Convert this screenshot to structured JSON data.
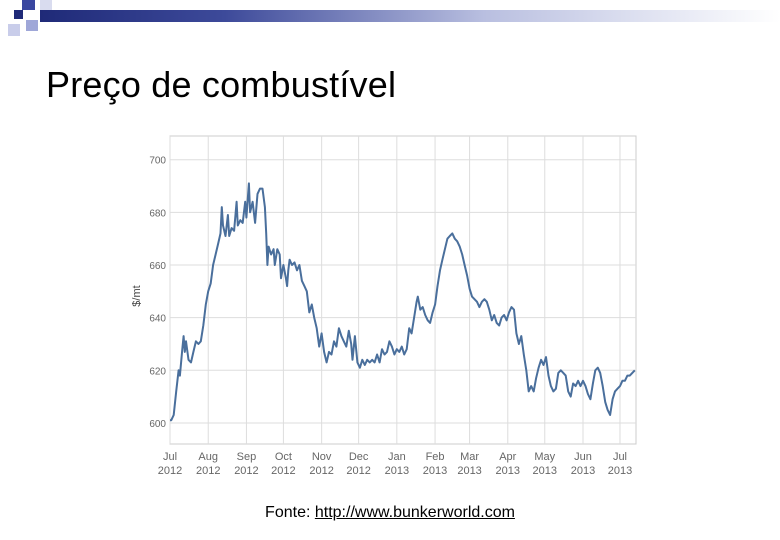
{
  "slide": {
    "title": "Preço de combustível",
    "source_label": "Fonte:",
    "source_link": "http://www.bunkerworld.com"
  },
  "colors": {
    "line": "#4a6f9c",
    "grid": "#dddddd",
    "axis_text": "#666666",
    "accent_dark": "#1f2a78"
  },
  "chart_data": {
    "type": "line",
    "title": "",
    "xlabel": "",
    "ylabel": "$/mt",
    "ylim": [
      592,
      709
    ],
    "yticks": [
      600,
      620,
      640,
      660,
      680,
      700
    ],
    "grid": true,
    "legend": "none",
    "x_ticks": [
      {
        "date": "2012-07-01",
        "month": "Jul",
        "year": "2012"
      },
      {
        "date": "2012-08-01",
        "month": "Aug",
        "year": "2012"
      },
      {
        "date": "2012-09-01",
        "month": "Sep",
        "year": "2012"
      },
      {
        "date": "2012-10-01",
        "month": "Oct",
        "year": "2012"
      },
      {
        "date": "2012-11-01",
        "month": "Nov",
        "year": "2012"
      },
      {
        "date": "2012-12-01",
        "month": "Dec",
        "year": "2012"
      },
      {
        "date": "2013-01-01",
        "month": "Jan",
        "year": "2013"
      },
      {
        "date": "2013-02-01",
        "month": "Feb",
        "year": "2013"
      },
      {
        "date": "2013-03-01",
        "month": "Mar",
        "year": "2013"
      },
      {
        "date": "2013-04-01",
        "month": "Apr",
        "year": "2013"
      },
      {
        "date": "2013-05-01",
        "month": "May",
        "year": "2013"
      },
      {
        "date": "2013-06-01",
        "month": "Jun",
        "year": "2013"
      },
      {
        "date": "2013-07-01",
        "month": "Jul",
        "year": "2013"
      }
    ],
    "xlim": [
      "2012-07-01",
      "2013-07-14"
    ],
    "series": [
      {
        "points": [
          [
            "2012-07-01",
            601
          ],
          [
            "2012-07-02",
            601
          ],
          [
            "2012-07-04",
            603
          ],
          [
            "2012-07-06",
            612
          ],
          [
            "2012-07-08",
            620
          ],
          [
            "2012-07-09",
            618
          ],
          [
            "2012-07-11",
            628
          ],
          [
            "2012-07-12",
            633
          ],
          [
            "2012-07-13",
            627
          ],
          [
            "2012-07-14",
            631
          ],
          [
            "2012-07-16",
            624
          ],
          [
            "2012-07-18",
            623
          ],
          [
            "2012-07-20",
            627
          ],
          [
            "2012-07-22",
            631
          ],
          [
            "2012-07-24",
            630
          ],
          [
            "2012-07-26",
            631
          ],
          [
            "2012-07-28",
            637
          ],
          [
            "2012-07-30",
            645
          ],
          [
            "2012-08-01",
            650
          ],
          [
            "2012-08-03",
            653
          ],
          [
            "2012-08-05",
            660
          ],
          [
            "2012-08-07",
            664
          ],
          [
            "2012-08-09",
            668
          ],
          [
            "2012-08-11",
            672
          ],
          [
            "2012-08-12",
            682
          ],
          [
            "2012-08-13",
            675
          ],
          [
            "2012-08-15",
            671
          ],
          [
            "2012-08-17",
            679
          ],
          [
            "2012-08-18",
            671
          ],
          [
            "2012-08-20",
            674
          ],
          [
            "2012-08-22",
            673
          ],
          [
            "2012-08-24",
            684
          ],
          [
            "2012-08-25",
            675
          ],
          [
            "2012-08-27",
            677
          ],
          [
            "2012-08-29",
            676
          ],
          [
            "2012-08-31",
            684
          ],
          [
            "2012-09-01",
            678
          ],
          [
            "2012-09-03",
            691
          ],
          [
            "2012-09-04",
            680
          ],
          [
            "2012-09-06",
            684
          ],
          [
            "2012-09-08",
            676
          ],
          [
            "2012-09-10",
            687
          ],
          [
            "2012-09-12",
            689
          ],
          [
            "2012-09-14",
            689
          ],
          [
            "2012-09-16",
            682
          ],
          [
            "2012-09-17",
            672
          ],
          [
            "2012-09-18",
            660
          ],
          [
            "2012-09-19",
            667
          ],
          [
            "2012-09-21",
            664
          ],
          [
            "2012-09-23",
            666
          ],
          [
            "2012-09-24",
            660
          ],
          [
            "2012-09-26",
            666
          ],
          [
            "2012-09-28",
            664
          ],
          [
            "2012-09-29",
            655
          ],
          [
            "2012-10-01",
            660
          ],
          [
            "2012-10-03",
            655
          ],
          [
            "2012-10-04",
            652
          ],
          [
            "2012-10-05",
            658
          ],
          [
            "2012-10-06",
            662
          ],
          [
            "2012-10-08",
            660
          ],
          [
            "2012-10-10",
            661
          ],
          [
            "2012-10-12",
            658
          ],
          [
            "2012-10-14",
            660
          ],
          [
            "2012-10-16",
            654
          ],
          [
            "2012-10-18",
            652
          ],
          [
            "2012-10-20",
            650
          ],
          [
            "2012-10-22",
            642
          ],
          [
            "2012-10-24",
            645
          ],
          [
            "2012-10-26",
            640
          ],
          [
            "2012-10-28",
            636
          ],
          [
            "2012-10-30",
            629
          ],
          [
            "2012-11-01",
            634
          ],
          [
            "2012-11-03",
            627
          ],
          [
            "2012-11-05",
            623
          ],
          [
            "2012-11-07",
            627
          ],
          [
            "2012-11-09",
            626
          ],
          [
            "2012-11-11",
            631
          ],
          [
            "2012-11-13",
            629
          ],
          [
            "2012-11-15",
            636
          ],
          [
            "2012-11-17",
            633
          ],
          [
            "2012-11-19",
            631
          ],
          [
            "2012-11-21",
            629
          ],
          [
            "2012-11-23",
            635
          ],
          [
            "2012-11-25",
            630
          ],
          [
            "2012-11-26",
            624
          ],
          [
            "2012-11-28",
            633
          ],
          [
            "2012-11-30",
            623
          ],
          [
            "2012-12-02",
            621
          ],
          [
            "2012-12-04",
            624
          ],
          [
            "2012-12-06",
            622
          ],
          [
            "2012-12-08",
            624
          ],
          [
            "2012-12-10",
            623
          ],
          [
            "2012-12-12",
            624
          ],
          [
            "2012-12-14",
            623
          ],
          [
            "2012-12-16",
            626
          ],
          [
            "2012-12-18",
            623
          ],
          [
            "2012-12-20",
            628
          ],
          [
            "2012-12-22",
            626
          ],
          [
            "2012-12-24",
            627
          ],
          [
            "2012-12-26",
            631
          ],
          [
            "2012-12-28",
            629
          ],
          [
            "2012-12-30",
            626
          ],
          [
            "2013-01-01",
            628
          ],
          [
            "2013-01-03",
            627
          ],
          [
            "2013-01-05",
            629
          ],
          [
            "2013-01-07",
            626
          ],
          [
            "2013-01-09",
            628
          ],
          [
            "2013-01-11",
            636
          ],
          [
            "2013-01-13",
            634
          ],
          [
            "2013-01-15",
            640
          ],
          [
            "2013-01-17",
            646
          ],
          [
            "2013-01-18",
            648
          ],
          [
            "2013-01-20",
            643
          ],
          [
            "2013-01-22",
            644
          ],
          [
            "2013-01-24",
            641
          ],
          [
            "2013-01-26",
            639
          ],
          [
            "2013-01-28",
            638
          ],
          [
            "2013-01-30",
            642
          ],
          [
            "2013-02-01",
            645
          ],
          [
            "2013-02-03",
            652
          ],
          [
            "2013-02-05",
            658
          ],
          [
            "2013-02-07",
            662
          ],
          [
            "2013-02-09",
            666
          ],
          [
            "2013-02-11",
            670
          ],
          [
            "2013-02-13",
            671
          ],
          [
            "2013-02-15",
            672
          ],
          [
            "2013-02-17",
            670
          ],
          [
            "2013-02-19",
            669
          ],
          [
            "2013-02-21",
            667
          ],
          [
            "2013-02-23",
            664
          ],
          [
            "2013-02-25",
            660
          ],
          [
            "2013-02-27",
            656
          ],
          [
            "2013-03-01",
            651
          ],
          [
            "2013-03-03",
            648
          ],
          [
            "2013-03-05",
            647
          ],
          [
            "2013-03-07",
            646
          ],
          [
            "2013-03-09",
            644
          ],
          [
            "2013-03-11",
            646
          ],
          [
            "2013-03-13",
            647
          ],
          [
            "2013-03-15",
            646
          ],
          [
            "2013-03-17",
            643
          ],
          [
            "2013-03-19",
            639
          ],
          [
            "2013-03-21",
            641
          ],
          [
            "2013-03-23",
            638
          ],
          [
            "2013-03-25",
            637
          ],
          [
            "2013-03-27",
            640
          ],
          [
            "2013-03-29",
            641
          ],
          [
            "2013-03-31",
            639
          ],
          [
            "2013-04-02",
            642
          ],
          [
            "2013-04-04",
            644
          ],
          [
            "2013-04-06",
            643
          ],
          [
            "2013-04-08",
            634
          ],
          [
            "2013-04-10",
            630
          ],
          [
            "2013-04-12",
            633
          ],
          [
            "2013-04-14",
            626
          ],
          [
            "2013-04-16",
            620
          ],
          [
            "2013-04-18",
            612
          ],
          [
            "2013-04-20",
            614
          ],
          [
            "2013-04-22",
            612
          ],
          [
            "2013-04-24",
            617
          ],
          [
            "2013-04-26",
            621
          ],
          [
            "2013-04-28",
            624
          ],
          [
            "2013-04-30",
            622
          ],
          [
            "2013-05-02",
            625
          ],
          [
            "2013-05-04",
            618
          ],
          [
            "2013-05-06",
            614
          ],
          [
            "2013-05-08",
            612
          ],
          [
            "2013-05-10",
            613
          ],
          [
            "2013-05-12",
            619
          ],
          [
            "2013-05-14",
            620
          ],
          [
            "2013-05-16",
            619
          ],
          [
            "2013-05-18",
            618
          ],
          [
            "2013-05-20",
            612
          ],
          [
            "2013-05-22",
            610
          ],
          [
            "2013-05-24",
            615
          ],
          [
            "2013-05-26",
            614
          ],
          [
            "2013-05-28",
            616
          ],
          [
            "2013-05-30",
            614
          ],
          [
            "2013-06-01",
            616
          ],
          [
            "2013-06-03",
            614
          ],
          [
            "2013-06-05",
            611
          ],
          [
            "2013-06-07",
            609
          ],
          [
            "2013-06-09",
            615
          ],
          [
            "2013-06-11",
            620
          ],
          [
            "2013-06-13",
            621
          ],
          [
            "2013-06-15",
            619
          ],
          [
            "2013-06-17",
            614
          ],
          [
            "2013-06-19",
            608
          ],
          [
            "2013-06-21",
            605
          ],
          [
            "2013-06-23",
            603
          ],
          [
            "2013-06-25",
            609
          ],
          [
            "2013-06-27",
            612
          ],
          [
            "2013-06-29",
            613
          ],
          [
            "2013-07-01",
            614
          ],
          [
            "2013-07-03",
            616
          ],
          [
            "2013-07-05",
            616
          ],
          [
            "2013-07-07",
            618
          ],
          [
            "2013-07-09",
            618
          ],
          [
            "2013-07-11",
            619
          ],
          [
            "2013-07-13",
            620
          ]
        ]
      }
    ]
  }
}
